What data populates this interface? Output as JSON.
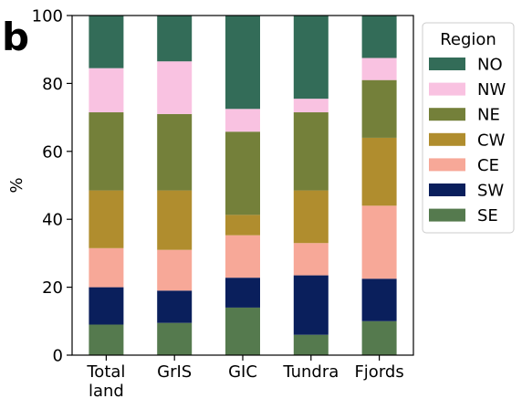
{
  "panel_label": "b",
  "chart_data": {
    "type": "bar",
    "stacked": true,
    "categories": [
      "Total land",
      "GrIS",
      "GIC",
      "Tundra",
      "Fjords"
    ],
    "category_lines": [
      [
        "Total",
        "land"
      ],
      [
        "GrIS"
      ],
      [
        "GIC"
      ],
      [
        "Tundra"
      ],
      [
        "Fjords"
      ]
    ],
    "ylabel": "%",
    "xlabel": "",
    "ylim": [
      0,
      100
    ],
    "yticks": [
      0,
      20,
      40,
      60,
      80,
      100
    ],
    "grid": false,
    "legend": {
      "title": "Region",
      "placement": "outside-right-top"
    },
    "series": [
      {
        "name": "SE",
        "color": "#557a4e",
        "values": [
          9,
          9.5,
          14,
          6,
          10
        ]
      },
      {
        "name": "SW",
        "color": "#0a1f5c",
        "values": [
          11,
          9.5,
          8.8,
          17.5,
          12.5
        ]
      },
      {
        "name": "CE",
        "color": "#f7a898",
        "values": [
          11.5,
          12,
          12.5,
          9.5,
          21.5
        ]
      },
      {
        "name": "CW",
        "color": "#b08d2e",
        "values": [
          17,
          17.5,
          6,
          15.5,
          20
        ]
      },
      {
        "name": "NE",
        "color": "#74803a",
        "values": [
          23,
          22.5,
          24.5,
          23,
          17
        ]
      },
      {
        "name": "NW",
        "color": "#f9c2e1",
        "values": [
          13,
          15.5,
          6.7,
          4,
          6.5
        ]
      },
      {
        "name": "NO",
        "color": "#336c58",
        "values": [
          15.5,
          13.5,
          27.5,
          24.5,
          12.5
        ]
      }
    ],
    "legend_order": [
      "NO",
      "NW",
      "NE",
      "CW",
      "CE",
      "SW",
      "SE"
    ]
  }
}
